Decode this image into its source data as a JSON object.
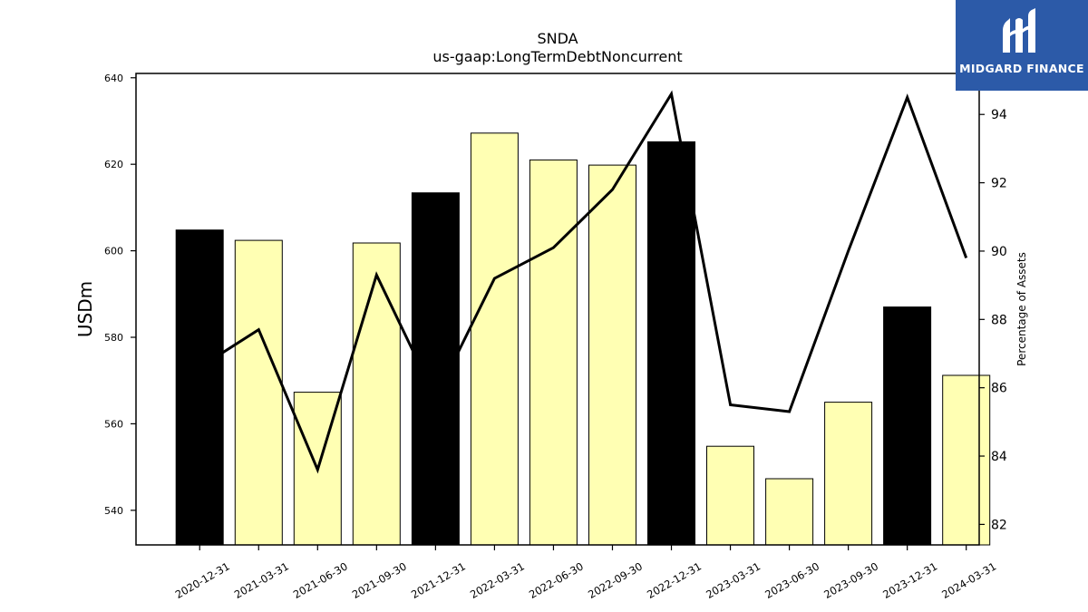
{
  "chart_data": {
    "type": "bar",
    "title": "SNDA",
    "subtitle": "us-gaap:LongTermDebtNoncurrent",
    "ylabel": "USDm",
    "y2label": "Percentage of Assets",
    "categories": [
      "2020-12-31",
      "2021-03-31",
      "2021-06-30",
      "2021-09-30",
      "2021-12-31",
      "2022-03-31",
      "2022-06-30",
      "2022-09-30",
      "2022-12-31",
      "2023-03-31",
      "2023-06-30",
      "2023-09-30",
      "2023-12-31",
      "2024-03-31"
    ],
    "bars": {
      "values": [
        604.8,
        602.4,
        567.3,
        601.8,
        613.4,
        627.2,
        621.0,
        619.8,
        625.2,
        554.8,
        547.3,
        565.0,
        587.0,
        571.2
      ],
      "highlight": [
        true,
        false,
        false,
        false,
        true,
        false,
        false,
        false,
        true,
        false,
        false,
        false,
        true,
        false
      ],
      "highlight_color": "#000000",
      "color": "#ffffb3",
      "edge_color": "#000000"
    },
    "line": {
      "axis": "right",
      "values": [
        86.6,
        87.7,
        83.6,
        89.3,
        85.7,
        89.2,
        90.1,
        91.8,
        94.6,
        85.5,
        85.3,
        90.0,
        94.5,
        89.8
      ],
      "color": "#000000"
    },
    "ylim": [
      532,
      641
    ],
    "yticks": [
      540,
      560,
      580,
      600,
      620,
      640
    ],
    "y2lim": [
      81.4,
      95.2
    ],
    "y2ticks": [
      82,
      84,
      86,
      88,
      90,
      92,
      94
    ],
    "grid": false
  },
  "logo": {
    "text": "MIDGARD FINANCE",
    "background": "#2c5aa8",
    "icon": "midgard-logo-icon"
  }
}
